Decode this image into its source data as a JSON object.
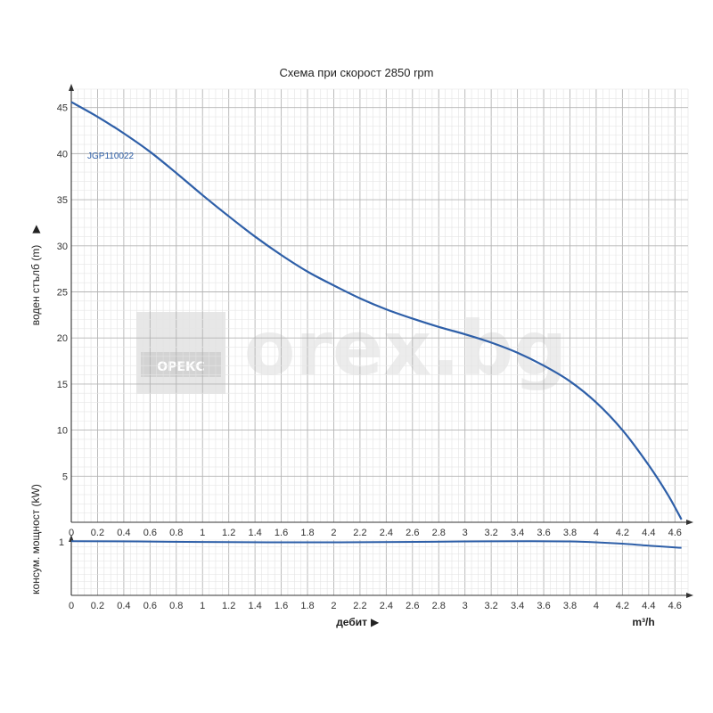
{
  "chart_data": [
    {
      "type": "line",
      "title": "Схема при скорост 2850 rpm",
      "ylabel": "воден стълб (m)",
      "ylabel_arrow": "▶",
      "xlim": [
        0,
        4.7
      ],
      "ylim": [
        0,
        47
      ],
      "x_ticks": [
        "0",
        "0.2",
        "0.4",
        "0.6",
        "0.8",
        "1",
        "1.2",
        "1.4",
        "1.6",
        "1.8",
        "2",
        "2.2",
        "2.4",
        "2.6",
        "2.8",
        "3",
        "3.2",
        "3.4",
        "3.6",
        "3.8",
        "4",
        "4.2",
        "4.4",
        "4.6"
      ],
      "y_ticks": [
        "5",
        "10",
        "15",
        "20",
        "25",
        "30",
        "35",
        "40",
        "45"
      ],
      "grid": true,
      "series": [
        {
          "name": "JGP110022",
          "color": "#2e5fa8",
          "x": [
            0,
            0.2,
            0.4,
            0.6,
            0.8,
            1.0,
            1.2,
            1.4,
            1.6,
            1.8,
            2.0,
            2.2,
            2.4,
            2.6,
            2.8,
            3.0,
            3.2,
            3.4,
            3.6,
            3.8,
            4.0,
            4.2,
            4.4,
            4.55,
            4.65
          ],
          "y": [
            45.6,
            44.0,
            42.2,
            40.2,
            37.9,
            35.5,
            33.2,
            31.0,
            29.0,
            27.2,
            25.7,
            24.3,
            23.1,
            22.1,
            21.2,
            20.4,
            19.5,
            18.4,
            17.0,
            15.3,
            13.0,
            10.0,
            6.2,
            2.9,
            0.3
          ]
        }
      ]
    },
    {
      "type": "line",
      "ylabel": "консум. мощност (kW)",
      "xlabel": "дебит",
      "xlabel_arrow": "▶",
      "xunit": "m³/h",
      "xlim": [
        0,
        4.7
      ],
      "y_tick": "1",
      "x_ticks": [
        "0",
        "0.2",
        "0.4",
        "0.6",
        "0.8",
        "1",
        "1.2",
        "1.4",
        "1.6",
        "1.8",
        "2",
        "2.2",
        "2.4",
        "2.6",
        "2.8",
        "3",
        "3.2",
        "3.4",
        "3.6",
        "3.8",
        "4",
        "4.2",
        "4.4",
        "4.6"
      ],
      "grid": true,
      "series": [
        {
          "color": "#2e5fa8",
          "x": [
            0,
            0.5,
            1.0,
            1.5,
            2.0,
            2.5,
            3.0,
            3.5,
            3.8,
            4.0,
            4.2,
            4.4,
            4.65
          ],
          "y": [
            0.98,
            0.975,
            0.965,
            0.96,
            0.96,
            0.965,
            0.975,
            0.98,
            0.975,
            0.96,
            0.935,
            0.9,
            0.86
          ]
        }
      ]
    }
  ],
  "watermark": {
    "logo_text": "ОРЕКС",
    "site_text": "orex.bg"
  }
}
